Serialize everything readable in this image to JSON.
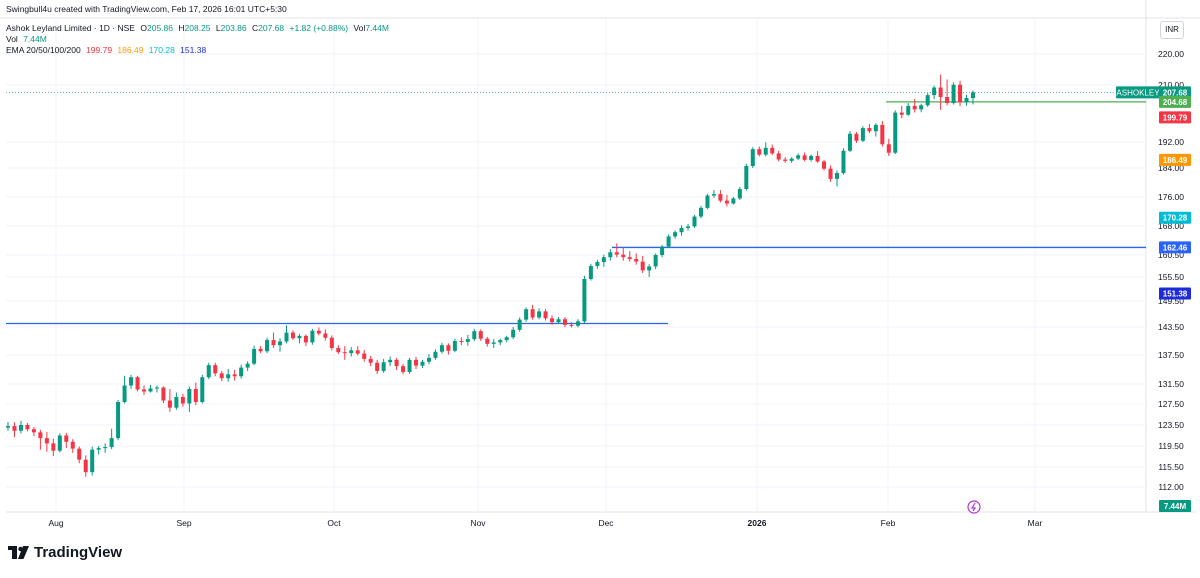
{
  "credit": "Swingbull4u created with TradingView.com, Feb 17, 2026 16:01 UTC+5:30",
  "legend": {
    "title": "Ashok Leyland Limited · 1D · NSE",
    "o_label": "O",
    "o": "205.86",
    "h_label": "H",
    "h": "208.25",
    "l_label": "L",
    "l": "203.86",
    "c_label": "C",
    "c": "207.68",
    "change": "+1.82 (+0.88%)",
    "vol_label": "Vol",
    "vol": "7.44M",
    "vol2_label": "Vol",
    "vol2": "7.44M",
    "ema_label": "EMA 20/50/100/200",
    "ema20": "199.79",
    "ema50": "186.49",
    "ema100": "170.28",
    "ema200": "151.38"
  },
  "currency": "INR",
  "brand": "TradingView",
  "colors": {
    "up": "#089981",
    "down": "#f23645",
    "ema20": "#f23645",
    "ema50": "#ff9800",
    "ema100": "#00bcd4",
    "ema200": "#1e2bd8",
    "hline_blue": "#2962ff",
    "hline_green": "#4caf50",
    "grid": "#f0f3fa",
    "text": "#131722",
    "price_dotted": "#26a69a"
  },
  "chart_data": {
    "type": "candlestick",
    "symbol": "ASHOKLEY",
    "x_ticks": [
      "Aug",
      "Sep",
      "Oct",
      "Nov",
      "Dec",
      "2026",
      "Feb",
      "Mar"
    ],
    "y_ticks": [
      220.0,
      210.0,
      192.0,
      184.0,
      176.0,
      168.0,
      160.5,
      155.5,
      149.5,
      143.5,
      137.5,
      131.5,
      127.5,
      123.5,
      119.5,
      115.5,
      112.0
    ],
    "y_tick_labels": [
      "220.00",
      "210.00",
      "192.00",
      "184.00",
      "176.00",
      "168.00",
      "160.50",
      "155.50",
      "149.50",
      "143.50",
      "137.50",
      "131.50",
      "127.50",
      "123.50",
      "119.50",
      "115.50",
      "112.00"
    ],
    "price_labels": [
      {
        "label": "ASHOKLEY",
        "value": "207.68",
        "color": "#089981"
      },
      {
        "label": "",
        "value": "204.68",
        "color": "#4caf50"
      },
      {
        "label": "",
        "value": "199.79",
        "color": "#f23645"
      },
      {
        "label": "",
        "value": "186.49",
        "color": "#ff9800"
      },
      {
        "label": "",
        "value": "170.28",
        "color": "#00bcd4"
      },
      {
        "label": "",
        "value": "162.46",
        "color": "#2962ff"
      },
      {
        "label": "",
        "value": "151.38",
        "color": "#1e2bd8"
      },
      {
        "label": "",
        "value": "7.44M",
        "color": "#089981"
      }
    ],
    "horizontal_lines": [
      {
        "value": 162.46,
        "from": "Dec",
        "to": "end",
        "color": "#2962ff"
      },
      {
        "value": 144.3,
        "from": "start",
        "to": "mid-Dec",
        "color": "#2962ff"
      },
      {
        "value": 204.68,
        "from": "late-Jan",
        "to": "end",
        "color": "#4caf50"
      }
    ],
    "current_price": 207.68,
    "candles": [
      [
        123.0,
        124.1,
        122.4,
        123.3
      ],
      [
        123.3,
        124.0,
        121.2,
        122.4
      ],
      [
        122.4,
        124.3,
        121.9,
        123.5
      ],
      [
        123.5,
        123.9,
        122.3,
        122.7
      ],
      [
        122.7,
        123.1,
        121.4,
        122.1
      ],
      [
        122.1,
        122.6,
        118.8,
        121.0
      ],
      [
        121.0,
        122.2,
        118.4,
        120.0
      ],
      [
        120.0,
        120.9,
        117.6,
        118.6
      ],
      [
        118.6,
        121.9,
        118.3,
        121.5
      ],
      [
        121.5,
        122.0,
        119.1,
        120.3
      ],
      [
        120.3,
        120.8,
        118.2,
        119.0
      ],
      [
        119.0,
        119.4,
        116.2,
        116.9
      ],
      [
        116.9,
        117.7,
        113.8,
        114.6
      ],
      [
        114.6,
        119.4,
        114.0,
        118.8
      ],
      [
        118.8,
        119.5,
        117.9,
        119.1
      ],
      [
        119.1,
        120.0,
        118.2,
        119.3
      ],
      [
        119.3,
        122.8,
        118.9,
        121.0
      ],
      [
        121.0,
        128.3,
        120.6,
        127.9
      ],
      [
        127.9,
        133.2,
        127.6,
        131.2
      ],
      [
        131.2,
        133.4,
        130.5,
        132.9
      ],
      [
        132.9,
        133.2,
        130.0,
        130.4
      ],
      [
        130.4,
        131.2,
        129.3,
        130.0
      ],
      [
        130.0,
        131.3,
        129.8,
        130.6
      ],
      [
        130.6,
        131.2,
        129.8,
        130.8
      ],
      [
        130.8,
        131.0,
        127.7,
        128.2
      ],
      [
        128.2,
        130.5,
        126.0,
        126.8
      ],
      [
        126.8,
        129.8,
        126.4,
        128.9
      ],
      [
        128.9,
        129.5,
        127.0,
        127.6
      ],
      [
        127.6,
        131.0,
        126.0,
        130.5
      ],
      [
        130.5,
        131.8,
        127.3,
        127.9
      ],
      [
        127.9,
        133.4,
        127.6,
        132.9
      ],
      [
        132.9,
        135.9,
        132.5,
        135.4
      ],
      [
        135.4,
        135.9,
        133.1,
        133.7
      ],
      [
        133.7,
        134.2,
        132.1,
        132.7
      ],
      [
        132.7,
        134.6,
        132.0,
        133.5
      ],
      [
        133.5,
        134.4,
        132.2,
        133.1
      ],
      [
        133.1,
        135.5,
        132.6,
        134.9
      ],
      [
        134.9,
        136.2,
        134.2,
        135.7
      ],
      [
        135.7,
        139.5,
        135.4,
        138.8
      ],
      [
        138.8,
        139.4,
        137.9,
        138.3
      ],
      [
        138.3,
        141.2,
        137.9,
        140.7
      ],
      [
        140.7,
        142.3,
        139.0,
        139.6
      ],
      [
        139.6,
        141.1,
        138.2,
        140.4
      ],
      [
        140.4,
        143.9,
        140.0,
        142.3
      ],
      [
        142.3,
        142.8,
        140.7,
        141.1
      ],
      [
        141.1,
        142.0,
        140.0,
        141.6
      ],
      [
        141.6,
        141.9,
        139.4,
        140.2
      ],
      [
        140.2,
        143.1,
        139.7,
        142.7
      ],
      [
        142.7,
        143.4,
        141.7,
        142.1
      ],
      [
        142.1,
        143.0,
        140.6,
        141.2
      ],
      [
        141.2,
        141.7,
        138.5,
        139.0
      ],
      [
        139.0,
        139.6,
        137.7,
        138.1
      ],
      [
        138.1,
        139.4,
        136.5,
        137.9
      ],
      [
        137.9,
        139.2,
        137.2,
        138.5
      ],
      [
        138.5,
        139.4,
        137.4,
        137.8
      ],
      [
        137.8,
        138.6,
        136.1,
        136.7
      ],
      [
        136.7,
        137.3,
        135.2,
        135.9
      ],
      [
        135.9,
        136.5,
        133.6,
        134.2
      ],
      [
        134.2,
        136.7,
        133.8,
        136.0
      ],
      [
        136.0,
        137.2,
        135.2,
        136.5
      ],
      [
        136.5,
        136.9,
        134.4,
        135.2
      ],
      [
        135.2,
        135.7,
        133.5,
        134.0
      ],
      [
        134.0,
        136.9,
        133.6,
        136.5
      ],
      [
        136.5,
        137.1,
        134.6,
        135.3
      ],
      [
        135.3,
        136.5,
        134.8,
        136.1
      ],
      [
        136.1,
        137.7,
        135.6,
        136.9
      ],
      [
        136.9,
        138.7,
        136.5,
        138.2
      ],
      [
        138.2,
        140.1,
        137.8,
        139.6
      ],
      [
        139.6,
        140.0,
        137.6,
        138.4
      ],
      [
        138.4,
        141.0,
        138.1,
        140.5
      ],
      [
        140.5,
        141.3,
        139.6,
        140.3
      ],
      [
        140.3,
        141.8,
        139.5,
        140.9
      ],
      [
        140.9,
        143.1,
        140.5,
        142.6
      ],
      [
        142.6,
        143.0,
        140.5,
        141.0
      ],
      [
        141.0,
        141.4,
        139.3,
        139.9
      ],
      [
        139.9,
        140.9,
        139.0,
        140.2
      ],
      [
        140.2,
        141.0,
        139.6,
        140.7
      ],
      [
        140.7,
        141.6,
        140.2,
        141.3
      ],
      [
        141.3,
        143.5,
        140.9,
        142.9
      ],
      [
        142.9,
        145.7,
        142.5,
        145.2
      ],
      [
        145.2,
        148.0,
        144.7,
        147.6
      ],
      [
        147.6,
        148.6,
        145.2,
        145.7
      ],
      [
        145.7,
        147.8,
        145.3,
        147.1
      ],
      [
        147.1,
        147.6,
        145.0,
        145.5
      ],
      [
        145.5,
        146.2,
        144.0,
        144.6
      ],
      [
        144.6,
        145.8,
        144.2,
        145.3
      ],
      [
        145.3,
        145.8,
        143.5,
        144.0
      ],
      [
        144.0,
        144.6,
        143.4,
        143.8
      ],
      [
        143.8,
        145.3,
        143.4,
        144.8
      ],
      [
        144.8,
        155.8,
        144.4,
        155.0
      ],
      [
        155.0,
        158.5,
        154.6,
        158.0
      ],
      [
        158.0,
        159.4,
        157.4,
        158.9
      ],
      [
        158.9,
        160.6,
        157.8,
        160.0
      ],
      [
        160.0,
        162.0,
        159.2,
        161.2
      ],
      [
        161.2,
        163.5,
        160.0,
        160.6
      ],
      [
        160.6,
        162.5,
        159.2,
        160.0
      ],
      [
        160.0,
        161.5,
        159.0,
        159.6
      ],
      [
        159.6,
        160.9,
        158.3,
        159.0
      ],
      [
        159.0,
        160.3,
        156.4,
        157.0
      ],
      [
        157.0,
        158.4,
        155.5,
        157.9
      ],
      [
        157.9,
        160.9,
        157.3,
        160.5
      ],
      [
        160.5,
        163.1,
        160.0,
        162.7
      ],
      [
        162.7,
        165.8,
        162.3,
        165.3
      ],
      [
        165.3,
        166.9,
        164.7,
        166.4
      ],
      [
        166.4,
        168.2,
        165.5,
        167.5
      ],
      [
        167.5,
        168.6,
        166.8,
        167.9
      ],
      [
        167.9,
        171.1,
        167.5,
        170.6
      ],
      [
        170.6,
        173.6,
        170.1,
        173.0
      ],
      [
        173.0,
        176.9,
        172.6,
        176.4
      ],
      [
        176.4,
        177.9,
        175.8,
        176.8
      ],
      [
        176.8,
        177.9,
        174.5,
        175.0
      ],
      [
        175.0,
        176.6,
        173.4,
        174.2
      ],
      [
        174.2,
        176.0,
        173.9,
        175.6
      ],
      [
        175.6,
        178.8,
        175.2,
        178.2
      ],
      [
        178.2,
        185.3,
        177.8,
        184.6
      ],
      [
        184.6,
        190.4,
        184.0,
        189.8
      ],
      [
        189.8,
        190.6,
        187.6,
        188.1
      ],
      [
        188.1,
        191.9,
        187.6,
        190.2
      ],
      [
        190.2,
        191.2,
        188.0,
        188.5
      ],
      [
        188.5,
        189.3,
        186.0,
        186.6
      ],
      [
        186.6,
        187.3,
        185.6,
        186.2
      ],
      [
        186.2,
        187.3,
        185.6,
        186.9
      ],
      [
        186.9,
        188.5,
        186.4,
        187.9
      ],
      [
        187.9,
        188.8,
        186.0,
        186.5
      ],
      [
        186.5,
        188.2,
        186.0,
        187.7
      ],
      [
        187.7,
        189.2,
        185.6,
        186.0
      ],
      [
        186.0,
        186.5,
        183.3,
        183.8
      ],
      [
        183.8,
        184.8,
        180.2,
        181.0
      ],
      [
        181.0,
        183.3,
        178.9,
        182.6
      ],
      [
        182.6,
        190.1,
        182.2,
        189.3
      ],
      [
        189.3,
        195.5,
        188.9,
        194.6
      ],
      [
        194.6,
        195.2,
        191.7,
        192.4
      ],
      [
        192.4,
        197.0,
        192.0,
        196.4
      ],
      [
        196.4,
        197.7,
        194.8,
        195.4
      ],
      [
        195.4,
        197.9,
        193.7,
        197.4
      ],
      [
        197.4,
        198.6,
        190.6,
        191.3
      ],
      [
        191.3,
        193.0,
        187.7,
        188.7
      ],
      [
        188.7,
        202.0,
        188.3,
        201.3
      ],
      [
        201.3,
        203.4,
        199.5,
        200.6
      ],
      [
        200.6,
        204.3,
        200.3,
        203.4
      ],
      [
        203.4,
        205.6,
        201.3,
        202.3
      ],
      [
        202.3,
        204.1,
        201.4,
        203.6
      ],
      [
        203.6,
        207.4,
        203.1,
        206.8
      ],
      [
        206.8,
        209.8,
        205.6,
        209.2
      ],
      [
        209.2,
        213.4,
        202.1,
        206.2
      ],
      [
        206.2,
        211.8,
        203.6,
        204.3
      ],
      [
        204.3,
        210.9,
        203.8,
        210.1
      ],
      [
        210.1,
        211.4,
        203.3,
        204.5
      ],
      [
        204.5,
        206.9,
        203.5,
        205.9
      ],
      [
        205.86,
        208.25,
        203.86,
        207.68
      ]
    ]
  }
}
